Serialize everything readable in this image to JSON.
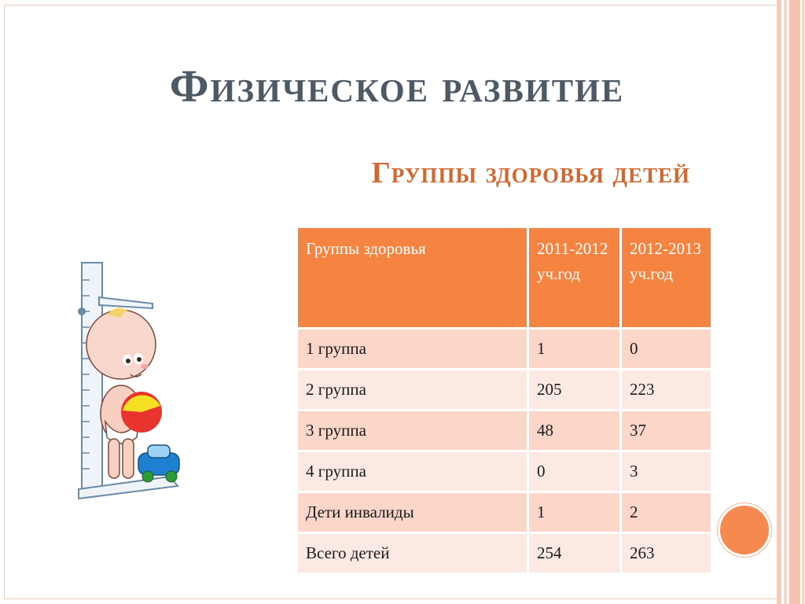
{
  "slide": {
    "title": "Физическое развитие",
    "subtitle": "Группы здоровья детей"
  },
  "table": {
    "headers": [
      "Группы здоровья",
      "2011-2012 уч.год",
      "2012-2013 уч.год"
    ],
    "rows": [
      [
        "1 группа",
        "1",
        "0"
      ],
      [
        "2 группа",
        "205",
        "223"
      ],
      [
        "3 группа",
        "48",
        "37"
      ],
      [
        "4 группа",
        "0",
        "3"
      ],
      [
        "Дети инвалиды",
        "1",
        "2"
      ],
      [
        "Всего детей",
        "254",
        "263"
      ]
    ]
  },
  "colors": {
    "header_bg": "#f58442",
    "row_odd": "#fbd6c9",
    "row_even": "#fde9e4",
    "title": "#4d5a66",
    "subtitle": "#d2672f",
    "accent_dot": "#f5894f"
  },
  "illustration": {
    "icon": "baby-on-height-scale-icon"
  }
}
